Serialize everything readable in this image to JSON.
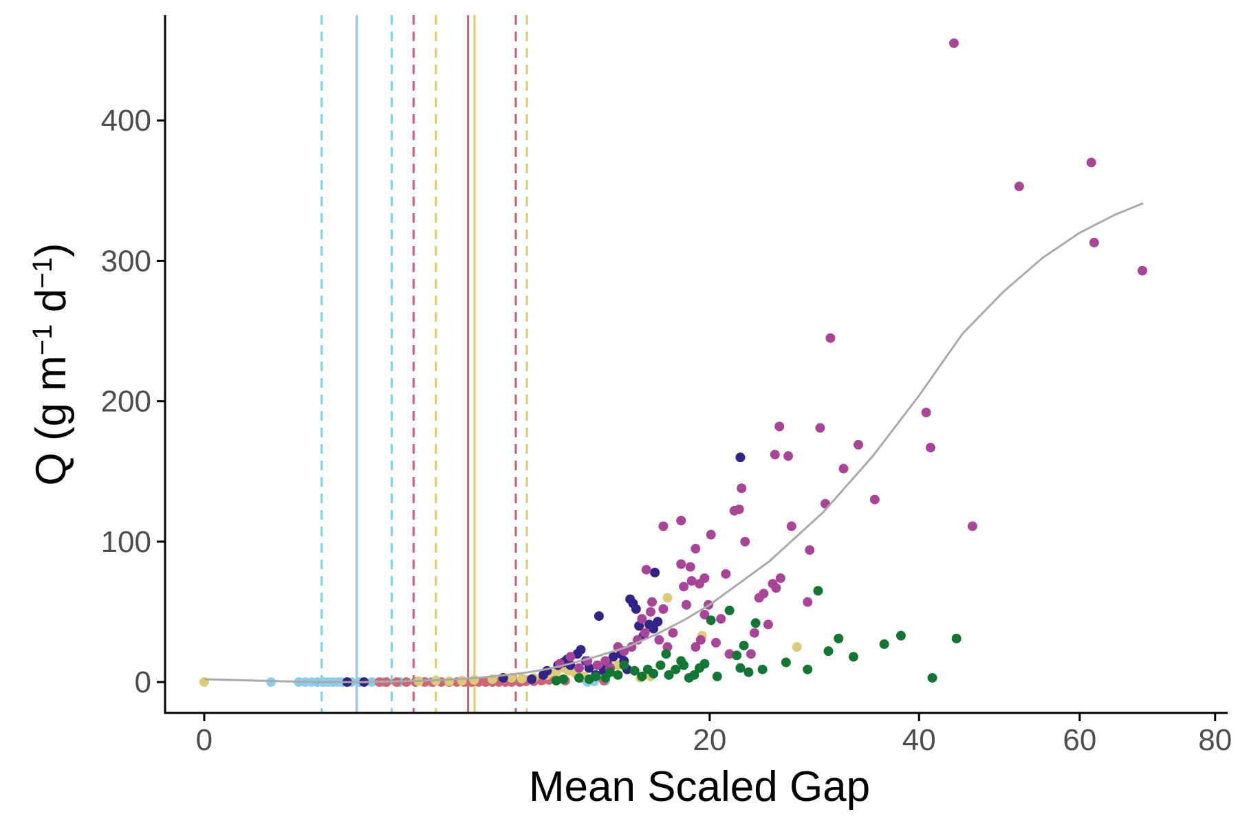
{
  "chart_data": {
    "type": "scatter",
    "x_scale": "sqrt",
    "xlabel": "Mean Scaled Gap",
    "ylabel": "Q (g m⁻¹ d⁻¹)",
    "ylabel_parts": [
      "Q (g m",
      "−1",
      " d",
      "−1",
      ")"
    ],
    "xlim": [
      -0.12,
      82
    ],
    "ylim": [
      -22,
      475
    ],
    "x_ticks": [
      0,
      20,
      40,
      60,
      80
    ],
    "x_tick_labels": [
      "0",
      "20",
      "40",
      "60",
      "80"
    ],
    "y_ticks": [
      0,
      100,
      200,
      300,
      400
    ],
    "y_tick_labels": [
      "0",
      "100",
      "200",
      "300",
      "400"
    ],
    "grid": false,
    "legend": "none",
    "colors": {
      "light_blue": "#88ccee",
      "red": "#cc6677",
      "yellow": "#ddcc77",
      "purple": "#aa4499",
      "navy": "#332288",
      "green": "#117733",
      "fit": "#aaaaaa",
      "axis": "#000000"
    },
    "vlines": [
      {
        "x": 1.08,
        "color": "#88ccee",
        "style": "dashed"
      },
      {
        "x": 1.82,
        "color": "#88ccee",
        "style": "solid"
      },
      {
        "x": 2.75,
        "color": "#88ccee",
        "style": "dashed"
      },
      {
        "x": 3.43,
        "color": "#cc6677",
        "style": "dashed"
      },
      {
        "x": 4.2,
        "color": "#ddcc77",
        "style": "dashed"
      },
      {
        "x": 5.45,
        "color": "#cc6677",
        "style": "solid"
      },
      {
        "x": 5.72,
        "color": "#ddcc77",
        "style": "solid"
      },
      {
        "x": 7.6,
        "color": "#cc6677",
        "style": "dashed"
      },
      {
        "x": 8.15,
        "color": "#ddcc77",
        "style": "dashed"
      }
    ],
    "fit_curve": {
      "color": "#aaaaaa",
      "points": [
        [
          0,
          2
        ],
        [
          0.5,
          0.5
        ],
        [
          1,
          0
        ],
        [
          2,
          0
        ],
        [
          3,
          0.5
        ],
        [
          4,
          1.2
        ],
        [
          5,
          2
        ],
        [
          6,
          3.2
        ],
        [
          7,
          4.8
        ],
        [
          8,
          6.5
        ],
        [
          9,
          8.7
        ],
        [
          10,
          11.5
        ],
        [
          12,
          18
        ],
        [
          14,
          25
        ],
        [
          16,
          34
        ],
        [
          18,
          44
        ],
        [
          20,
          55
        ],
        [
          25,
          86
        ],
        [
          30,
          121
        ],
        [
          35,
          161
        ],
        [
          40,
          204
        ],
        [
          45,
          248
        ],
        [
          50,
          278
        ],
        [
          55,
          302
        ],
        [
          60,
          320
        ],
        [
          65,
          333
        ],
        [
          69,
          341
        ]
      ]
    },
    "series": [
      {
        "color": "#88ccee",
        "points": [
          [
            0.35,
            0
          ],
          [
            0.7,
            0
          ],
          [
            0.8,
            0
          ],
          [
            0.9,
            0
          ],
          [
            1.0,
            0
          ],
          [
            1.1,
            0
          ],
          [
            1.2,
            0
          ],
          [
            1.3,
            0
          ],
          [
            1.4,
            0
          ],
          [
            1.5,
            0
          ],
          [
            1.6,
            0
          ],
          [
            1.7,
            0
          ],
          [
            1.9,
            0
          ],
          [
            2.2,
            0
          ],
          [
            2.5,
            0
          ],
          [
            3.0,
            0
          ],
          [
            3.5,
            0
          ],
          [
            4.0,
            0
          ],
          [
            11.5,
            0
          ],
          [
            11.9,
            0.5
          ],
          [
            12.6,
            1
          ]
        ]
      },
      {
        "color": "#cc6677",
        "points": [
          [
            2.4,
            0
          ],
          [
            2.6,
            0
          ],
          [
            2.9,
            0
          ],
          [
            3.2,
            0
          ],
          [
            3.5,
            0
          ],
          [
            3.8,
            0
          ],
          [
            4.1,
            0
          ],
          [
            4.4,
            0
          ],
          [
            4.7,
            0
          ],
          [
            5.0,
            0
          ],
          [
            5.3,
            0
          ],
          [
            5.6,
            0
          ],
          [
            5.9,
            0
          ],
          [
            6.2,
            0
          ],
          [
            6.5,
            0
          ],
          [
            6.8,
            0
          ],
          [
            7.1,
            0
          ],
          [
            7.4,
            0
          ],
          [
            7.8,
            0
          ],
          [
            8.1,
            0.5
          ],
          [
            8.5,
            0.5
          ],
          [
            8.9,
            1
          ],
          [
            9.3,
            1.5
          ],
          [
            9.7,
            2
          ],
          [
            10.2,
            1
          ],
          [
            11.1,
            3
          ],
          [
            12.5,
            1
          ]
        ]
      },
      {
        "color": "#ddcc77",
        "points": [
          [
            0,
            0
          ],
          [
            3.6,
            0.5
          ],
          [
            4.2,
            1
          ],
          [
            4.7,
            0.5
          ],
          [
            5.2,
            1
          ],
          [
            5.7,
            1.5
          ],
          [
            6.5,
            2
          ],
          [
            7.4,
            3
          ],
          [
            7.9,
            2.5
          ],
          [
            8.5,
            3
          ],
          [
            9.2,
            5
          ],
          [
            9.7,
            7
          ],
          [
            10.1,
            10
          ],
          [
            10.4,
            8
          ],
          [
            10.8,
            6
          ],
          [
            11.3,
            4
          ],
          [
            12.8,
            14
          ],
          [
            13.4,
            12
          ],
          [
            14.9,
            3
          ],
          [
            15.6,
            4
          ],
          [
            16.8,
            60
          ],
          [
            19.4,
            33
          ],
          [
            27.5,
            25
          ]
        ]
      },
      {
        "color": "#332288",
        "points": [
          [
            1.6,
            0
          ],
          [
            2.0,
            0
          ],
          [
            7.0,
            3
          ],
          [
            8.4,
            2
          ],
          [
            9.0,
            5
          ],
          [
            9.2,
            8
          ],
          [
            9.8,
            12
          ],
          [
            10.1,
            14
          ],
          [
            10.3,
            16
          ],
          [
            10.5,
            12
          ],
          [
            10.9,
            20
          ],
          [
            11.1,
            23
          ],
          [
            11.4,
            15
          ],
          [
            11.6,
            10
          ],
          [
            12.0,
            5
          ],
          [
            12.2,
            47
          ],
          [
            12.5,
            8
          ],
          [
            12.7,
            13
          ],
          [
            13.1,
            18
          ],
          [
            13.6,
            20
          ],
          [
            13.8,
            15
          ],
          [
            14.0,
            9
          ],
          [
            14.2,
            59
          ],
          [
            14.4,
            56
          ],
          [
            14.6,
            52
          ],
          [
            14.8,
            40
          ],
          [
            15.1,
            33
          ],
          [
            15.5,
            41
          ],
          [
            15.8,
            38
          ],
          [
            16.1,
            43
          ],
          [
            15.9,
            78
          ],
          [
            22.5,
            160
          ]
        ]
      },
      {
        "color": "#aa4499",
        "points": [
          [
            9.9,
            13
          ],
          [
            10.5,
            18
          ],
          [
            11.0,
            10
          ],
          [
            11.5,
            15
          ],
          [
            12.1,
            12
          ],
          [
            12.6,
            15
          ],
          [
            12.9,
            10
          ],
          [
            13.4,
            25
          ],
          [
            13.8,
            22
          ],
          [
            14.3,
            25
          ],
          [
            14.7,
            30
          ],
          [
            15.0,
            45
          ],
          [
            15.2,
            35
          ],
          [
            15.6,
            50
          ],
          [
            15.3,
            80
          ],
          [
            15.7,
            57
          ],
          [
            16.2,
            30
          ],
          [
            16.5,
            52
          ],
          [
            16.8,
            25
          ],
          [
            17.2,
            35
          ],
          [
            16.5,
            111
          ],
          [
            17.8,
            115
          ],
          [
            17.8,
            84
          ],
          [
            18.2,
            55
          ],
          [
            18.0,
            68
          ],
          [
            18.6,
            72
          ],
          [
            18.5,
            82
          ],
          [
            18.9,
            95
          ],
          [
            19.2,
            70
          ],
          [
            19.6,
            74
          ],
          [
            18.9,
            25
          ],
          [
            19.3,
            30
          ],
          [
            19.6,
            48
          ],
          [
            19.9,
            55
          ],
          [
            20.1,
            105
          ],
          [
            20.5,
            28
          ],
          [
            20.9,
            45
          ],
          [
            21.3,
            77
          ],
          [
            21.6,
            20
          ],
          [
            22.0,
            122
          ],
          [
            22.4,
            123
          ],
          [
            22.6,
            138
          ],
          [
            22.9,
            100
          ],
          [
            23.4,
            20
          ],
          [
            23.7,
            35
          ],
          [
            24.1,
            60
          ],
          [
            24.5,
            63
          ],
          [
            24.9,
            41
          ],
          [
            25.3,
            70
          ],
          [
            25.6,
            67
          ],
          [
            26.0,
            74
          ],
          [
            25.9,
            182
          ],
          [
            26.7,
            161
          ],
          [
            25.5,
            162
          ],
          [
            27.0,
            111
          ],
          [
            28.5,
            57
          ],
          [
            28.7,
            94
          ],
          [
            29.7,
            181
          ],
          [
            30.2,
            127
          ],
          [
            30.7,
            245
          ],
          [
            32.0,
            152
          ],
          [
            33.5,
            169
          ],
          [
            35.2,
            130
          ],
          [
            40.8,
            192
          ],
          [
            41.3,
            167
          ],
          [
            44.0,
            455
          ],
          [
            46.2,
            111
          ],
          [
            52.0,
            353
          ],
          [
            61.6,
            370
          ],
          [
            62.0,
            313
          ],
          [
            68.9,
            293
          ]
        ]
      },
      {
        "color": "#117733",
        "points": [
          [
            9.7,
            1
          ],
          [
            10.1,
            2
          ],
          [
            11.0,
            3
          ],
          [
            11.6,
            2
          ],
          [
            12.0,
            4
          ],
          [
            12.6,
            3
          ],
          [
            12.9,
            7
          ],
          [
            13.4,
            5
          ],
          [
            13.8,
            12
          ],
          [
            14.5,
            8
          ],
          [
            15.0,
            4
          ],
          [
            15.4,
            9
          ],
          [
            15.8,
            6
          ],
          [
            16.3,
            12
          ],
          [
            16.7,
            20
          ],
          [
            16.9,
            5
          ],
          [
            17.4,
            9
          ],
          [
            17.8,
            15
          ],
          [
            18.0,
            12
          ],
          [
            18.4,
            3
          ],
          [
            18.8,
            5
          ],
          [
            19.2,
            10
          ],
          [
            19.6,
            13
          ],
          [
            20.1,
            44
          ],
          [
            20.6,
            4
          ],
          [
            21.6,
            51
          ],
          [
            22.2,
            19
          ],
          [
            22.5,
            10
          ],
          [
            22.8,
            26
          ],
          [
            23.2,
            7
          ],
          [
            23.8,
            42
          ],
          [
            24.4,
            9
          ],
          [
            26.5,
            14
          ],
          [
            28.5,
            9
          ],
          [
            29.5,
            65
          ],
          [
            30.5,
            22
          ],
          [
            31.5,
            31
          ],
          [
            33.0,
            18
          ],
          [
            36.2,
            27
          ],
          [
            38.0,
            33
          ],
          [
            41.5,
            3
          ],
          [
            44.3,
            31
          ]
        ]
      }
    ]
  }
}
